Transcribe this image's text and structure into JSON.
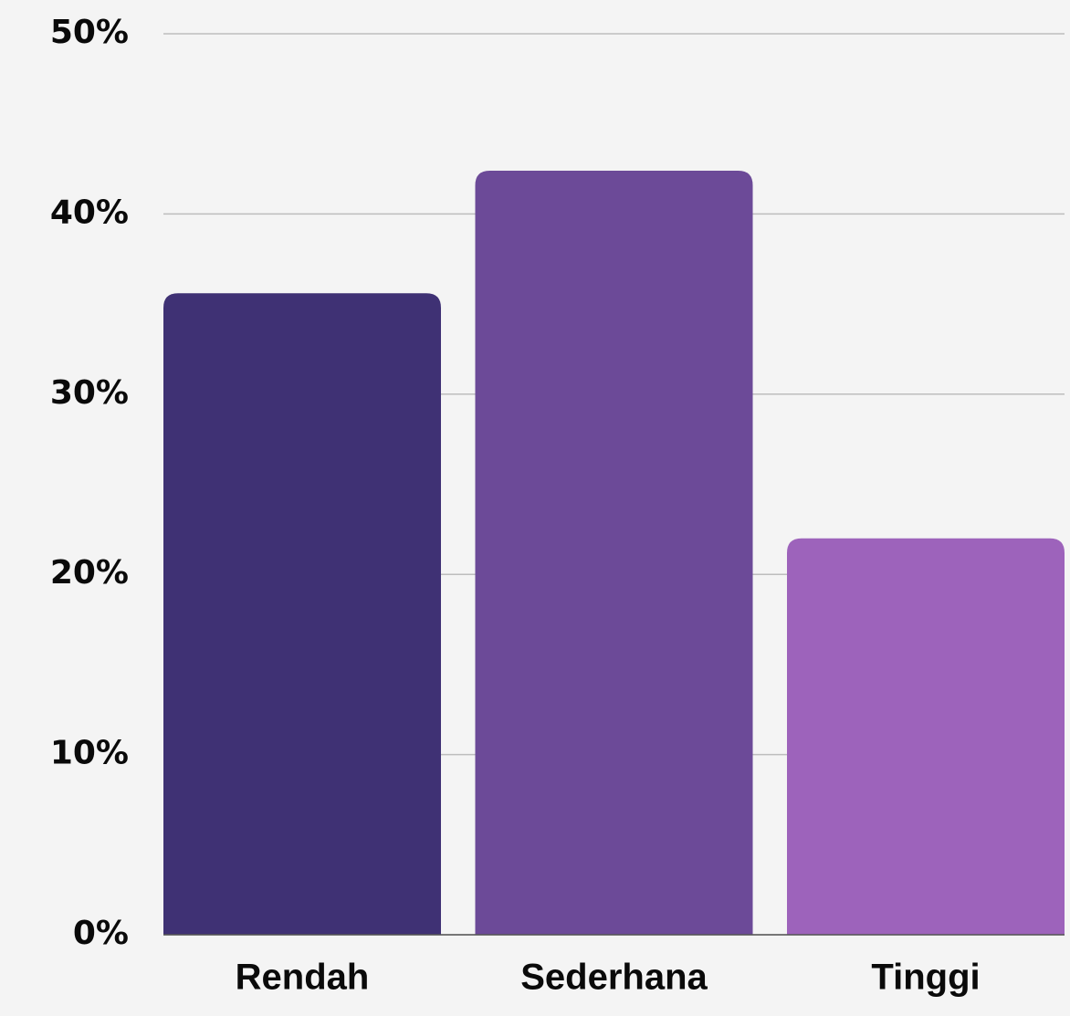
{
  "chart_data": {
    "type": "bar",
    "categories": [
      "Rendah",
      "Sederhana",
      "Tinggi"
    ],
    "values": [
      35.6,
      42.4,
      22.0
    ],
    "colors": [
      "#3f3174",
      "#6c4a98",
      "#9d63bb"
    ],
    "ylim": [
      0,
      50
    ],
    "yticks": [
      {
        "value": 0,
        "label": "0%"
      },
      {
        "value": 10,
        "label": "10%"
      },
      {
        "value": 20,
        "label": "20%"
      },
      {
        "value": 30,
        "label": "30%"
      },
      {
        "value": 40,
        "label": "40%"
      },
      {
        "value": 50,
        "label": "50%"
      }
    ],
    "grid": true
  }
}
